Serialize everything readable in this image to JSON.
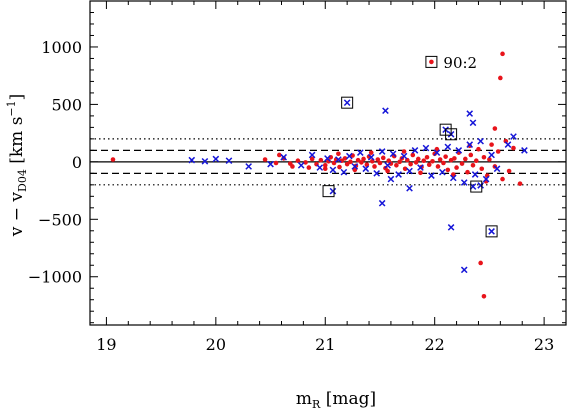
{
  "chart_data": {
    "type": "scatter",
    "xlabel": {
      "main": "m",
      "sub": "R",
      "rest": " [mag]"
    },
    "ylabel": {
      "lead": "v − v",
      "sub": "D04",
      "mid": " [km s",
      "sup": "−1",
      "tail": "]"
    },
    "xlim": [
      18.85,
      23.2
    ],
    "ylim": [
      -1420,
      1400
    ],
    "x_ticks": [
      19,
      20,
      21,
      22,
      23
    ],
    "y_ticks": [
      1000,
      500,
      0,
      -500,
      -1000
    ],
    "y_tick_labels": [
      "1000",
      "500",
      "0",
      "−500",
      "−1000"
    ],
    "reference_lines": [
      {
        "y": 0,
        "style": "solid"
      },
      {
        "y": 100,
        "style": "dashed"
      },
      {
        "y": -100,
        "style": "dashed"
      },
      {
        "y": 200,
        "style": "dotted"
      },
      {
        "y": -200,
        "style": "dotted"
      }
    ],
    "annotation": {
      "text": "90:2",
      "x": 21.97,
      "y": 870
    },
    "colors": {
      "red": "#e8141b",
      "blue": "#1515d8"
    },
    "series": [
      {
        "marker": "dot",
        "color": "red",
        "points": [
          [
            19.06,
            20
          ],
          [
            20.45,
            20
          ],
          [
            20.55,
            -10
          ],
          [
            20.62,
            30
          ],
          [
            20.68,
            -15
          ],
          [
            20.75,
            10
          ],
          [
            20.82,
            -5
          ],
          [
            20.88,
            25
          ],
          [
            20.92,
            -20
          ],
          [
            20.96,
            15
          ],
          [
            21.0,
            -30
          ],
          [
            21.03,
            5
          ],
          [
            21.05,
            40
          ],
          [
            21.08,
            -10
          ],
          [
            21.1,
            20
          ],
          [
            21.13,
            -45
          ],
          [
            21.15,
            10
          ],
          [
            21.18,
            30
          ],
          [
            21.2,
            -20
          ],
          [
            21.23,
            0
          ],
          [
            21.25,
            55
          ],
          [
            21.28,
            -35
          ],
          [
            21.3,
            15
          ],
          [
            21.33,
            -5
          ],
          [
            21.35,
            25
          ],
          [
            21.38,
            -25
          ],
          [
            21.4,
            45
          ],
          [
            21.43,
            5
          ],
          [
            21.45,
            -40
          ],
          [
            21.48,
            20
          ],
          [
            21.5,
            -10
          ],
          [
            21.53,
            35
          ],
          [
            21.55,
            -55
          ],
          [
            21.58,
            10
          ],
          [
            21.6,
            -15
          ],
          [
            21.63,
            50
          ],
          [
            21.65,
            -30
          ],
          [
            21.68,
            0
          ],
          [
            21.7,
            30
          ],
          [
            21.73,
            -60
          ],
          [
            21.75,
            15
          ],
          [
            21.78,
            -20
          ],
          [
            21.8,
            60
          ],
          [
            21.83,
            -5
          ],
          [
            21.85,
            25
          ],
          [
            21.88,
            -45
          ],
          [
            21.9,
            10
          ],
          [
            21.93,
            40
          ],
          [
            21.95,
            -25
          ],
          [
            21.98,
            5
          ],
          [
            22.0,
            70
          ],
          [
            22.03,
            -40
          ],
          [
            22.05,
            20
          ],
          [
            22.08,
            -10
          ],
          [
            22.1,
            45
          ],
          [
            22.12,
            -70
          ],
          [
            22.15,
            15
          ],
          [
            22.18,
            30
          ],
          [
            22.2,
            -50
          ],
          [
            22.22,
            80
          ],
          [
            22.25,
            -15
          ],
          [
            22.28,
            25
          ],
          [
            22.3,
            -90
          ],
          [
            22.33,
            60
          ],
          [
            22.35,
            -30
          ],
          [
            22.38,
            10
          ],
          [
            22.4,
            110
          ],
          [
            22.43,
            -60
          ],
          [
            22.45,
            40
          ],
          [
            22.48,
            -120
          ],
          [
            22.5,
            20
          ],
          [
            22.52,
            150
          ],
          [
            22.55,
            -40
          ],
          [
            22.58,
            90
          ],
          [
            22.62,
            -150
          ],
          [
            22.65,
            180
          ],
          [
            22.68,
            -80
          ],
          [
            22.72,
            120
          ],
          [
            22.78,
            -190
          ],
          [
            20.58,
            60
          ],
          [
            20.7,
            -40
          ],
          [
            20.85,
            -50
          ],
          [
            21.0,
            -60
          ],
          [
            21.12,
            70
          ],
          [
            21.27,
            -70
          ],
          [
            21.42,
            80
          ],
          [
            21.57,
            -80
          ],
          [
            21.72,
            90
          ],
          [
            21.87,
            -95
          ],
          [
            22.02,
            110
          ],
          [
            22.17,
            -110
          ],
          [
            22.32,
            140
          ],
          [
            22.47,
            -170
          ],
          [
            22.55,
            290
          ],
          [
            22.6,
            730
          ],
          [
            22.62,
            940
          ],
          [
            22.42,
            -880
          ],
          [
            22.45,
            -1170
          ],
          [
            21.97,
            870
          ]
        ]
      },
      {
        "marker": "cross",
        "color": "blue",
        "points": [
          [
            19.78,
            15
          ],
          [
            19.9,
            5
          ],
          [
            20.0,
            25
          ],
          [
            20.12,
            10
          ],
          [
            20.5,
            -20
          ],
          [
            20.62,
            40
          ],
          [
            20.78,
            -30
          ],
          [
            20.88,
            60
          ],
          [
            20.95,
            -50
          ],
          [
            21.02,
            30
          ],
          [
            21.07,
            -70
          ],
          [
            21.12,
            20
          ],
          [
            21.17,
            -90
          ],
          [
            21.22,
            50
          ],
          [
            21.27,
            -40
          ],
          [
            21.32,
            80
          ],
          [
            21.37,
            -60
          ],
          [
            21.42,
            40
          ],
          [
            21.47,
            -100
          ],
          [
            21.52,
            90
          ],
          [
            21.57,
            -30
          ],
          [
            21.62,
            70
          ],
          [
            21.67,
            -110
          ],
          [
            21.72,
            50
          ],
          [
            21.77,
            -80
          ],
          [
            21.82,
            100
          ],
          [
            21.87,
            -50
          ],
          [
            21.92,
            120
          ],
          [
            21.97,
            -120
          ],
          [
            22.02,
            80
          ],
          [
            22.07,
            -90
          ],
          [
            22.12,
            130
          ],
          [
            22.17,
            -140
          ],
          [
            22.22,
            100
          ],
          [
            22.27,
            -180
          ],
          [
            22.32,
            150
          ],
          [
            22.37,
            -110
          ],
          [
            22.42,
            180
          ],
          [
            22.47,
            -150
          ],
          [
            22.52,
            60
          ],
          [
            22.57,
            -60
          ],
          [
            22.67,
            150
          ],
          [
            22.72,
            220
          ],
          [
            22.82,
            100
          ],
          [
            21.2,
            515
          ],
          [
            21.07,
            -255
          ],
          [
            21.52,
            -360
          ],
          [
            21.77,
            -230
          ],
          [
            22.1,
            280
          ],
          [
            22.15,
            240
          ],
          [
            22.35,
            -215
          ],
          [
            22.42,
            -205
          ],
          [
            22.52,
            -605
          ],
          [
            22.32,
            420
          ],
          [
            22.35,
            340
          ],
          [
            22.15,
            -570
          ],
          [
            22.27,
            -940
          ],
          [
            21.55,
            445
          ],
          [
            20.3,
            -40
          ],
          [
            21.6,
            -150
          ]
        ]
      }
    ],
    "boxed_points": [
      [
        21.97,
        870
      ],
      [
        21.2,
        515
      ],
      [
        22.1,
        280
      ],
      [
        22.15,
        240
      ],
      [
        21.03,
        -255
      ],
      [
        22.38,
        -215
      ],
      [
        22.52,
        -605
      ]
    ]
  }
}
